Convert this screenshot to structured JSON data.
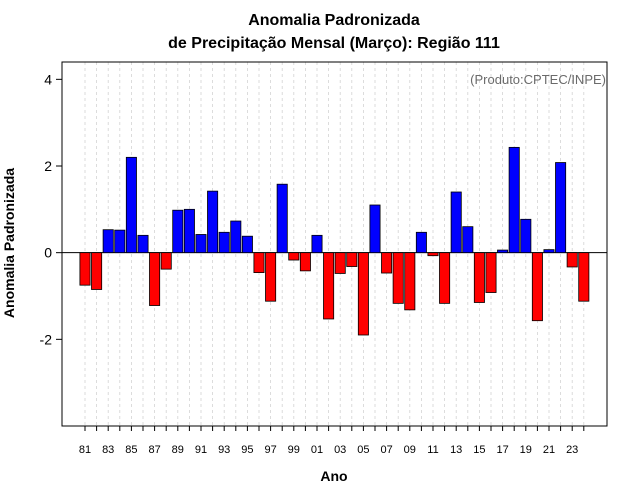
{
  "chart_data": {
    "type": "bar",
    "title_line1": "Anomalia Padronizada",
    "title_line2": "de Precipitação Mensal (Março): Região 111",
    "xlabel": "Ano",
    "ylabel": "Anomalia Padronizada",
    "source_note": "(Produto:CPTEC/INPE)",
    "ylim": [
      -4,
      4.4
    ],
    "yticks": [
      -2,
      0,
      2,
      4
    ],
    "ytick_labels": [
      "-2",
      "0",
      "2",
      "4"
    ],
    "grid": "vertical dashed",
    "colors": {
      "positive": "#0000ff",
      "negative": "#ff0000",
      "grid": "#d3d3d3",
      "zero_line": "#000000"
    },
    "categories": [
      "81",
      "82",
      "83",
      "84",
      "85",
      "86",
      "87",
      "88",
      "89",
      "90",
      "91",
      "92",
      "93",
      "94",
      "95",
      "96",
      "97",
      "98",
      "99",
      "00",
      "01",
      "02",
      "03",
      "04",
      "05",
      "06",
      "07",
      "08",
      "09",
      "10",
      "11",
      "12",
      "13",
      "14",
      "15",
      "16",
      "17",
      "18",
      "19",
      "20",
      "21",
      "22",
      "23",
      "24"
    ],
    "xtick_labels": [
      "81",
      "83",
      "85",
      "87",
      "89",
      "91",
      "93",
      "95",
      "97",
      "99",
      "01",
      "03",
      "05",
      "07",
      "09",
      "11",
      "13",
      "15",
      "17",
      "19",
      "21",
      "23"
    ],
    "values": [
      -0.75,
      -0.85,
      0.53,
      0.52,
      2.2,
      0.4,
      -1.22,
      -0.38,
      0.98,
      1.0,
      0.42,
      1.42,
      0.47,
      0.73,
      0.38,
      -0.46,
      -1.12,
      1.58,
      -0.17,
      -0.42,
      0.4,
      -1.53,
      -0.48,
      -0.32,
      -1.9,
      1.1,
      -0.47,
      -1.17,
      -1.32,
      0.47,
      -0.07,
      -1.17,
      1.4,
      0.6,
      -1.15,
      -0.92,
      0.06,
      2.43,
      0.77,
      -1.57,
      0.07,
      2.08,
      -0.33,
      -1.12
    ]
  }
}
